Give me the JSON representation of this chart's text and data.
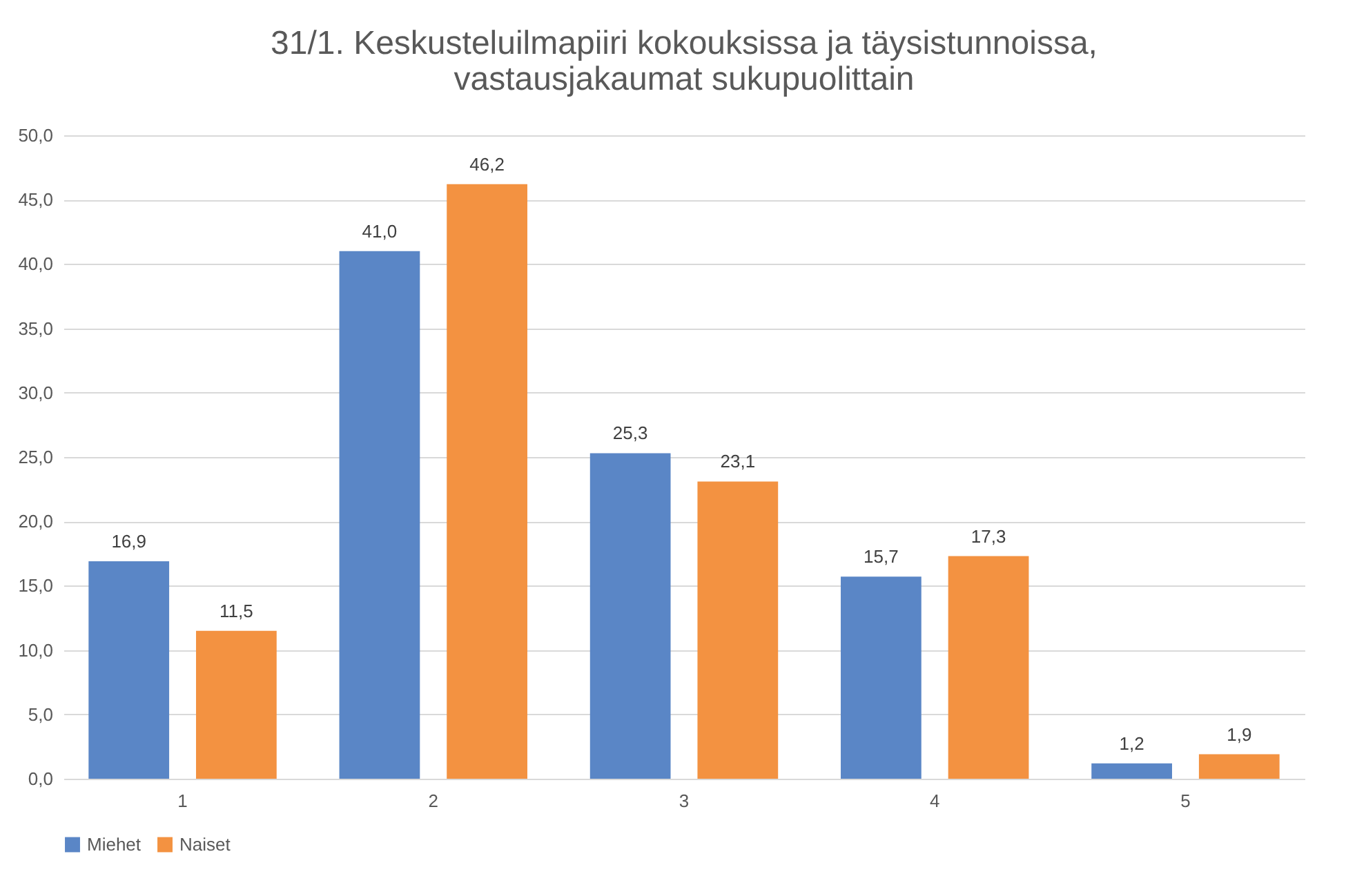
{
  "chart_data": {
    "type": "bar",
    "title": "31/1. Keskusteluilmapiiri kokouksissa ja täysistunnoissa, vastausjakaumat sukupuolittain",
    "categories": [
      "1",
      "2",
      "3",
      "4",
      "5"
    ],
    "series": [
      {
        "name": "Miehet",
        "color": "#5a86c6",
        "values": [
          16.9,
          41.0,
          25.3,
          15.7,
          1.2
        ],
        "value_labels": [
          "16,9",
          "41,0",
          "25,3",
          "15,7",
          "1,2"
        ]
      },
      {
        "name": "Naiset",
        "color": "#f39241",
        "values": [
          11.5,
          46.2,
          23.1,
          17.3,
          1.9
        ],
        "value_labels": [
          "11,5",
          "46,2",
          "23,1",
          "17,3",
          "1,9"
        ]
      }
    ],
    "ylim": [
      0,
      50
    ],
    "yticks": [
      {
        "value": 0,
        "label": "0,0"
      },
      {
        "value": 5,
        "label": "5,0"
      },
      {
        "value": 10,
        "label": "10,0"
      },
      {
        "value": 15,
        "label": "15,0"
      },
      {
        "value": 20,
        "label": "20,0"
      },
      {
        "value": 25,
        "label": "25,0"
      },
      {
        "value": 30,
        "label": "30,0"
      },
      {
        "value": 35,
        "label": "35,0"
      },
      {
        "value": 40,
        "label": "40,0"
      },
      {
        "value": 45,
        "label": "45,0"
      },
      {
        "value": 50,
        "label": "50,0"
      }
    ],
    "grid": "y",
    "legend": "bottom"
  }
}
